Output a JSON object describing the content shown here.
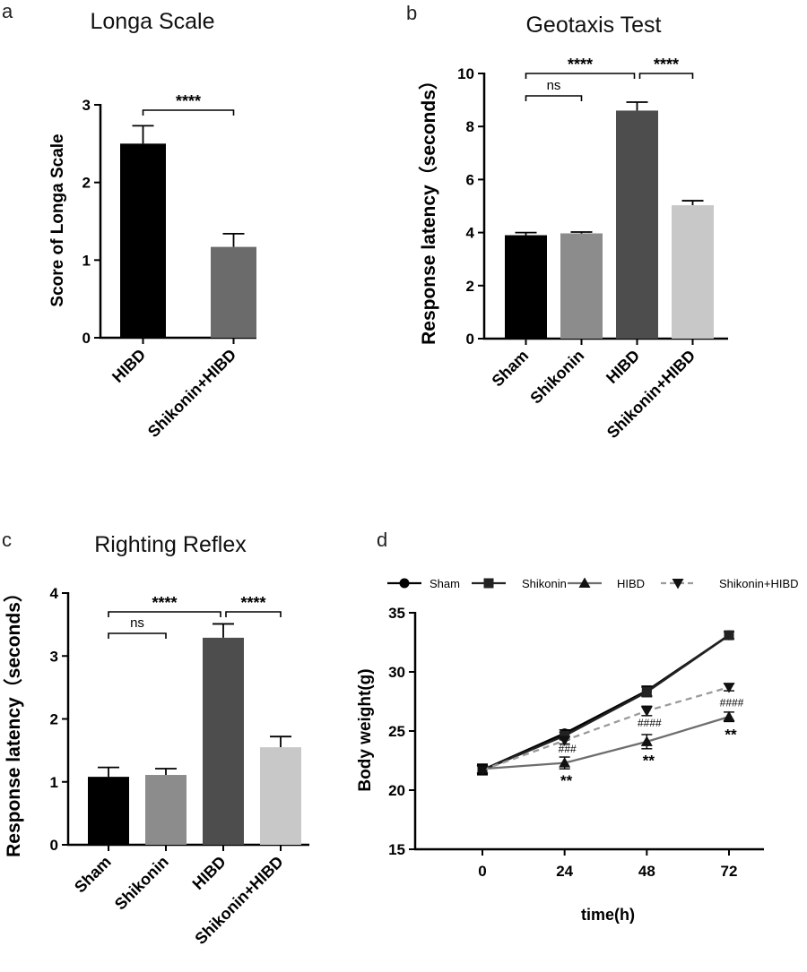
{
  "chart_data": [
    {
      "panel": "a",
      "type": "bar",
      "title": "Longa Scale",
      "ylabel": "Score of Longa Scale",
      "xlabel": "",
      "ylim": [
        0,
        3
      ],
      "yticks": [
        "0",
        "1",
        "2",
        "3"
      ],
      "categories": [
        "HIBD",
        "Shikonin+HIBD"
      ],
      "values": [
        2.5,
        1.17
      ],
      "errors": [
        0.23,
        0.17
      ],
      "colors": [
        "#000000",
        "#6b6b6b"
      ],
      "significance": [
        {
          "from": "HIBD",
          "to": "Shikonin+HIBD",
          "label": "****"
        }
      ]
    },
    {
      "panel": "b",
      "type": "bar",
      "title": "Geotaxis Test",
      "ylabel": "Response latency（seconds）",
      "xlabel": "",
      "ylim": [
        0,
        10
      ],
      "yticks": [
        "0",
        "2",
        "4",
        "6",
        "8",
        "10"
      ],
      "categories": [
        "Sham",
        "Shikonin",
        "HIBD",
        "Shikonin+HIBD"
      ],
      "values": [
        3.9,
        3.97,
        8.6,
        5.03
      ],
      "errors": [
        0.1,
        0.05,
        0.32,
        0.17
      ],
      "colors": [
        "#000000",
        "#8c8c8c",
        "#4d4d4d",
        "#c8c8c8"
      ],
      "significance": [
        {
          "from": "Sham",
          "to": "HIBD",
          "label": "****"
        },
        {
          "from": "HIBD",
          "to": "Shikonin+HIBD",
          "label": "****"
        },
        {
          "from": "Sham",
          "to": "Shikonin",
          "label": "ns"
        }
      ]
    },
    {
      "panel": "c",
      "type": "bar",
      "title": "Righting Reflex",
      "ylabel": "Response latency（seconds）",
      "xlabel": "",
      "ylim": [
        0,
        4
      ],
      "yticks": [
        "0",
        "1",
        "2",
        "3",
        "4"
      ],
      "categories": [
        "Sham",
        "Shikonin",
        "HIBD",
        "Shikonin+HIBD"
      ],
      "values": [
        1.08,
        1.11,
        3.29,
        1.55
      ],
      "errors": [
        0.15,
        0.1,
        0.22,
        0.17
      ],
      "colors": [
        "#000000",
        "#8c8c8c",
        "#4d4d4d",
        "#c8c8c8"
      ],
      "significance": [
        {
          "from": "Sham",
          "to": "HIBD",
          "label": "****"
        },
        {
          "from": "HIBD",
          "to": "Shikonin+HIBD",
          "label": "****"
        },
        {
          "from": "Sham",
          "to": "Shikonin",
          "label": "ns"
        }
      ]
    },
    {
      "panel": "d",
      "type": "line",
      "title": "",
      "xlabel": "time(h)",
      "ylabel": "Body weight(g)",
      "x": [
        0,
        24,
        48,
        72
      ],
      "xticks": [
        "0",
        "24",
        "48",
        "72"
      ],
      "ylim": [
        15,
        35
      ],
      "yticks": [
        "15",
        "20",
        "25",
        "30",
        "35"
      ],
      "legend_position": "top",
      "series": [
        {
          "name": "Sham",
          "marker": "circle",
          "dash": false,
          "color": "#000000",
          "values": [
            21.7,
            24.8,
            28.4,
            33.1
          ],
          "errors": [
            0.4,
            0.3,
            0.4,
            0.3
          ]
        },
        {
          "name": "Shikonin",
          "marker": "square",
          "dash": false,
          "color": "#222222",
          "values": [
            21.7,
            24.6,
            28.3,
            33.1
          ],
          "errors": [
            0.4,
            0.3,
            0.4,
            0.3
          ]
        },
        {
          "name": "HIBD",
          "marker": "triangle-up",
          "dash": false,
          "color": "#6e6e6e",
          "values": [
            21.8,
            22.3,
            24.1,
            26.2
          ],
          "errors": [
            0.4,
            0.5,
            0.6,
            0.4
          ]
        },
        {
          "name": "Shikonin+HIBD",
          "marker": "triangle-down",
          "dash": true,
          "color": "#9a9a9a",
          "values": [
            21.7,
            24.2,
            26.7,
            28.7
          ],
          "errors": [
            0.4,
            0.3,
            0.4,
            0.3
          ]
        }
      ],
      "annotations": [
        {
          "x": 24,
          "label": "**",
          "style": "star",
          "anchor": 21.0
        },
        {
          "x": 48,
          "label": "**",
          "style": "star",
          "anchor": 22.7
        },
        {
          "x": 72,
          "label": "**",
          "style": "star",
          "anchor": 24.9
        },
        {
          "x": 24,
          "label": "###",
          "style": "hash",
          "anchor": 23.5
        },
        {
          "x": 48,
          "label": "####",
          "style": "hash",
          "anchor": 25.7
        },
        {
          "x": 72,
          "label": "####",
          "style": "hash",
          "anchor": 27.4
        }
      ]
    }
  ],
  "panel_labels": [
    "a",
    "b",
    "c",
    "d"
  ]
}
